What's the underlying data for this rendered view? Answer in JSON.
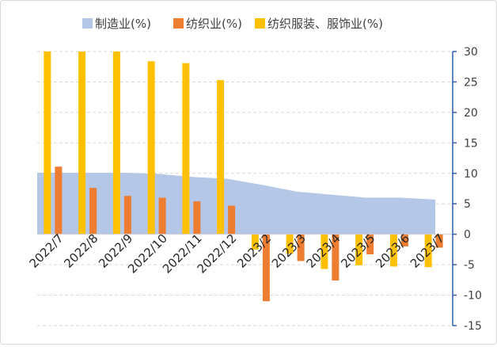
{
  "chart_data": {
    "type": "bar",
    "title": "",
    "xlabel": "",
    "ylabel": "",
    "categories": [
      "2022/7",
      "2022/8",
      "2022/9",
      "2022/10",
      "2022/11",
      "2022/12",
      "2023/2",
      "2023/3",
      "2023/4",
      "2023/5",
      "2023/6",
      "2023/7"
    ],
    "ylim": [
      -15,
      30
    ],
    "yticks": [
      30,
      25,
      20,
      15,
      10,
      5,
      0,
      -5,
      -10,
      -15
    ],
    "y_axis_side": "right",
    "grid": true,
    "legend_position": "top",
    "series": [
      {
        "name": "制造业(%)",
        "type": "area",
        "color": "#b4c7e7",
        "values": [
          10.1,
          10.1,
          10.1,
          9.9,
          9.4,
          9.1,
          8.1,
          7.0,
          6.5,
          6.0,
          6.0,
          5.7
        ]
      },
      {
        "name": "纺织业(%)",
        "type": "bar",
        "color": "#ed7d31",
        "values": [
          11.1,
          7.6,
          6.3,
          6.0,
          5.4,
          4.7,
          -11.0,
          -4.4,
          -7.6,
          -3.3,
          -2.0,
          -2.2
        ]
      },
      {
        "name": "纺织服装、服饰业(%)",
        "type": "bar",
        "color": "#ffc000",
        "values": [
          30.0,
          30.0,
          30.0,
          28.4,
          28.1,
          25.3,
          -2.5,
          -3.2,
          -5.7,
          -5.1,
          -5.3,
          -5.4
        ]
      }
    ]
  }
}
